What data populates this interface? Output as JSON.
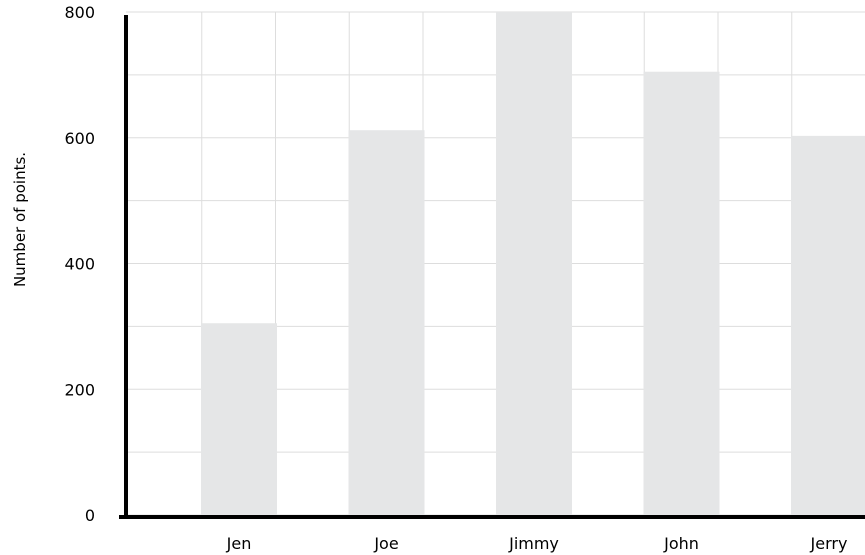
{
  "chart_data": {
    "type": "bar",
    "title": "",
    "xlabel": "",
    "ylabel": "Number of points.",
    "categories": [
      "Jen",
      "Joe",
      "Jimmy",
      "John",
      "Jerry"
    ],
    "values": [
      305,
      612,
      800,
      705,
      603
    ],
    "ylim": [
      0,
      800
    ],
    "yticks": [
      0,
      200,
      400,
      600,
      800
    ],
    "grid": true,
    "legend": "none",
    "colors": {
      "bar": "#e5e6e7",
      "grid": "#dddddd",
      "axis": "#000000"
    }
  }
}
